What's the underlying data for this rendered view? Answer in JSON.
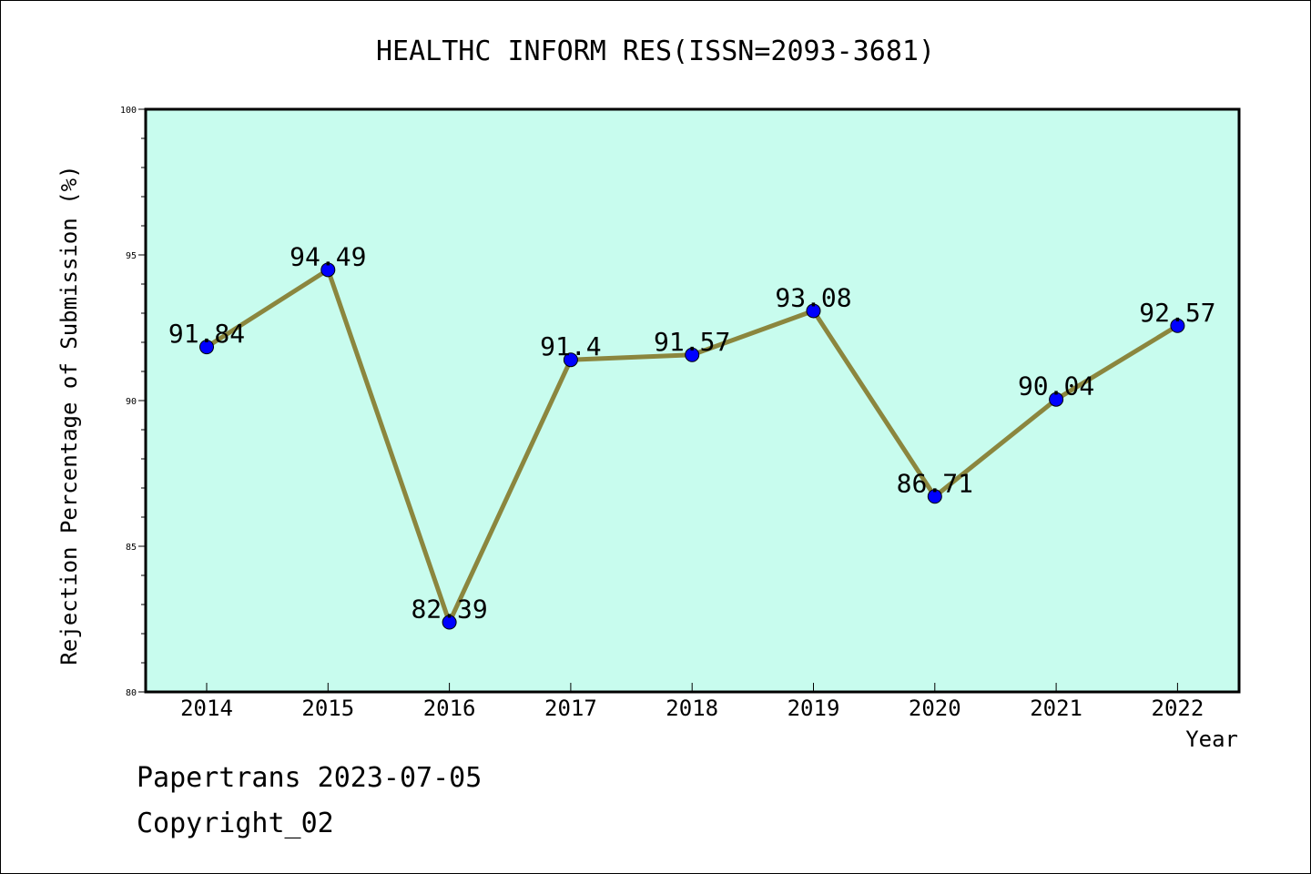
{
  "chart_data": {
    "type": "line",
    "title": "HEALTHC INFORM RES(ISSN=2093-3681)",
    "xlabel": "Year",
    "ylabel": "Rejection Percentage of Submission (%)",
    "categories": [
      "2014",
      "2015",
      "2016",
      "2017",
      "2018",
      "2019",
      "2020",
      "2021",
      "2022"
    ],
    "series": [
      {
        "values": [
          91.84,
          94.49,
          82.39,
          91.4,
          91.57,
          93.08,
          86.71,
          90.04,
          92.57
        ],
        "labels": [
          "91.84",
          "94.49",
          "82.39",
          "91.4",
          "91.57",
          "93.08",
          "86.71",
          "90.04",
          "92.57"
        ],
        "line_color": "#8b863e",
        "marker_color": "#0000ff"
      }
    ],
    "ylim": [
      80,
      100
    ],
    "yticks": [
      80,
      85,
      90,
      95,
      100
    ],
    "plot_background": "#c8fcee",
    "grid": false,
    "legend": false
  },
  "footer": {
    "line1": "Papertrans 2023-07-05",
    "line2": "Copyright_02"
  }
}
